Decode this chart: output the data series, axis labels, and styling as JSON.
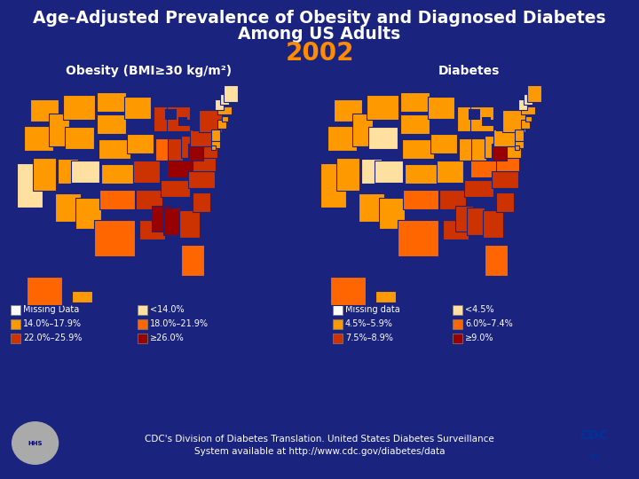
{
  "background_color": "#1a237e",
  "title_line1": "Age-Adjusted Prevalence of Obesity and Diagnosed Diabetes",
  "title_line2": "Among US Adults",
  "title_color": "#ffffff",
  "title_fontsize": 13.5,
  "year_text": "2002",
  "year_color": "#ff8c00",
  "year_fontsize": 20,
  "map_left_title": "Obesity (BMI≥30 kg/m²)",
  "map_right_title": "Diabetes",
  "map_title_color": "#ffffff",
  "map_title_fontsize": 10,
  "obesity_legend_col1": [
    {
      "label": "Missing Data",
      "color": "#ffffff"
    },
    {
      "label": "14.0%–17.9%",
      "color": "#ff9900"
    },
    {
      "label": "22.0%–25.9%",
      "color": "#cc3300"
    }
  ],
  "obesity_legend_col2": [
    {
      "label": "<14.0%",
      "color": "#ffe0a0"
    },
    {
      "label": "18.0%–21.9%",
      "color": "#ff6600"
    },
    {
      "label": "≥26.0%",
      "color": "#990000"
    }
  ],
  "diabetes_legend_col1": [
    {
      "label": "Missing data",
      "color": "#ffffff"
    },
    {
      "label": "4.5%–5.9%",
      "color": "#ff9900"
    },
    {
      "label": "7.5%–8.9%",
      "color": "#cc3300"
    }
  ],
  "diabetes_legend_col2": [
    {
      "label": "<4.5%",
      "color": "#ffe0a0"
    },
    {
      "label": "6.0%–7.4%",
      "color": "#ff6600"
    },
    {
      "label": "≥9.0%",
      "color": "#990000"
    }
  ],
  "footer_text": "CDC's Division of Diabetes Translation. United States Diabetes Surveillance\nSystem available at http://www.cdc.gov/diabetes/data",
  "footer_color": "#ffffff",
  "footer_fontsize": 7.5,
  "obesity_states": {
    "WA": "#ff9900",
    "OR": "#ff9900",
    "CA": "#ffe0a0",
    "NV": "#ff9900",
    "ID": "#ff9900",
    "MT": "#ff9900",
    "WY": "#ff9900",
    "UT": "#ff9900",
    "AZ": "#ff9900",
    "CO": "#ffe0a0",
    "NM": "#ff9900",
    "ND": "#ff9900",
    "SD": "#ff9900",
    "NE": "#ff9900",
    "KS": "#ff9900",
    "MN": "#ff9900",
    "IA": "#ff9900",
    "MO": "#cc3300",
    "WI": "#cc3300",
    "MI": "#cc3300",
    "IL": "#ff6600",
    "IN": "#cc3300",
    "OH": "#cc3300",
    "WV": "#990000",
    "VA": "#cc3300",
    "KY": "#990000",
    "TN": "#cc3300",
    "NC": "#cc3300",
    "SC": "#cc3300",
    "GA": "#cc3300",
    "AL": "#990000",
    "MS": "#990000",
    "LA": "#cc3300",
    "AR": "#cc3300",
    "TX": "#ff6600",
    "OK": "#ff6600",
    "FL": "#ff6600",
    "PA": "#cc3300",
    "NY": "#cc3300",
    "VT": "#ffe0a0",
    "NH": "#ffe0a0",
    "ME": "#ffe0a0",
    "MA": "#ff9900",
    "RI": "#ff9900",
    "CT": "#ff9900",
    "NJ": "#ff9900",
    "DE": "#ff9900",
    "MD": "#cc3300",
    "DC": "#ff9900",
    "AK": "#ff6600",
    "HI": "#ff9900",
    "SD2": "#ff9900",
    "ND2": "#ff9900"
  },
  "diabetes_states": {
    "WA": "#ff9900",
    "OR": "#ff9900",
    "CA": "#ff9900",
    "NV": "#ff9900",
    "ID": "#ff9900",
    "MT": "#ff9900",
    "WY": "#ffe0a0",
    "UT": "#ffe0a0",
    "AZ": "#ff9900",
    "CO": "#ffe0a0",
    "NM": "#ff9900",
    "ND": "#ff9900",
    "SD": "#ff9900",
    "NE": "#ff9900",
    "KS": "#ff9900",
    "MN": "#ff9900",
    "IA": "#ff9900",
    "MO": "#ff9900",
    "WI": "#ff9900",
    "MI": "#ff9900",
    "IL": "#ff9900",
    "IN": "#ff9900",
    "OH": "#ff9900",
    "WV": "#990000",
    "VA": "#ff6600",
    "KY": "#ff6600",
    "TN": "#cc3300",
    "NC": "#cc3300",
    "SC": "#cc3300",
    "GA": "#cc3300",
    "AL": "#cc3300",
    "MS": "#cc3300",
    "LA": "#cc3300",
    "AR": "#cc3300",
    "TX": "#ff6600",
    "OK": "#ff6600",
    "FL": "#ff6600",
    "PA": "#ff9900",
    "NY": "#ff9900",
    "VT": "#ffe0a0",
    "NH": "#ffe0a0",
    "ME": "#ff9900",
    "MA": "#ff9900",
    "RI": "#ff9900",
    "CT": "#ff9900",
    "NJ": "#ff9900",
    "DE": "#ff9900",
    "MD": "#ff9900",
    "DC": "#ff9900",
    "AK": "#ff6600",
    "HI": "#ff9900"
  }
}
